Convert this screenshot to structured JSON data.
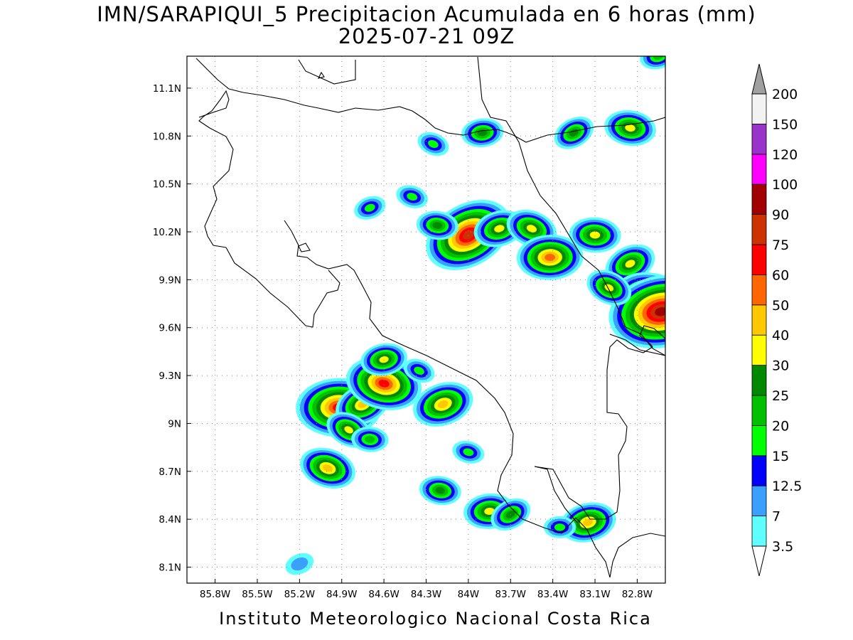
{
  "title_line1": "IMN/SARAPIQUI_5 Precipitacion Acumulada en 6 horas (mm)",
  "title_line2": "2025-07-21 09Z",
  "footer": "Instituto Meteorologico Nacional Costa Rica",
  "map": {
    "lon_range": [
      -86.0,
      -82.6
    ],
    "lat_range": [
      8.0,
      11.3
    ],
    "lon_ticks": [
      "85.8W",
      "85.5W",
      "85.2W",
      "84.9W",
      "84.6W",
      "84.3W",
      "84W",
      "83.7W",
      "83.4W",
      "83.1W",
      "82.8W"
    ],
    "lon_values": [
      -85.8,
      -85.5,
      -85.2,
      -84.9,
      -84.6,
      -84.3,
      -84.0,
      -83.7,
      -83.4,
      -83.1,
      -82.8
    ],
    "lat_ticks": [
      "11.1N",
      "10.8N",
      "10.5N",
      "10.2N",
      "9.9N",
      "9.6N",
      "9.3N",
      "9N",
      "8.7N",
      "8.4N",
      "8.1N"
    ],
    "lat_values": [
      11.1,
      10.8,
      10.5,
      10.2,
      9.9,
      9.6,
      9.3,
      9.0,
      8.7,
      8.4,
      8.1
    ],
    "grid": "dotted"
  },
  "colorbar": {
    "labels": [
      "3.5",
      "7",
      "12.5",
      "15",
      "20",
      "25",
      "30",
      "40",
      "50",
      "60",
      "75",
      "90",
      "100",
      "120",
      "150",
      "200"
    ],
    "colors": [
      "#ffffff",
      "#60ffff",
      "#3aa0ff",
      "#0000ff",
      "#00ff00",
      "#00c000",
      "#008800",
      "#ffff00",
      "#ffc800",
      "#ff6600",
      "#ff0000",
      "#cc3300",
      "#a00000",
      "#ff00ff",
      "#9933cc",
      "#f2f2f2",
      "#a0a0a0"
    ]
  },
  "precip_cells": [
    {
      "lon": -84.0,
      "lat": 10.18,
      "peak": 75
    },
    {
      "lon": -84.22,
      "lat": 10.24,
      "peak": 25
    },
    {
      "lon": -83.78,
      "lat": 10.22,
      "peak": 35
    },
    {
      "lon": -83.55,
      "lat": 10.22,
      "peak": 35
    },
    {
      "lon": -83.42,
      "lat": 10.04,
      "peak": 50
    },
    {
      "lon": -82.85,
      "lat": 10.0,
      "peak": 35
    },
    {
      "lon": -82.7,
      "lat": 9.78,
      "peak": 60
    },
    {
      "lon": -82.63,
      "lat": 9.7,
      "peak": 90
    },
    {
      "lon": -83.0,
      "lat": 9.85,
      "peak": 30
    },
    {
      "lon": -83.1,
      "lat": 10.18,
      "peak": 35
    },
    {
      "lon": -84.7,
      "lat": 10.35,
      "peak": 15
    },
    {
      "lon": -84.4,
      "lat": 10.42,
      "peak": 15
    },
    {
      "lon": -83.9,
      "lat": 10.82,
      "peak": 25
    },
    {
      "lon": -83.25,
      "lat": 10.82,
      "peak": 25
    },
    {
      "lon": -82.85,
      "lat": 10.85,
      "peak": 35
    },
    {
      "lon": -82.65,
      "lat": 11.3,
      "peak": 20
    },
    {
      "lon": -84.25,
      "lat": 10.75,
      "peak": 15
    },
    {
      "lon": -84.92,
      "lat": 9.1,
      "peak": 70
    },
    {
      "lon": -84.75,
      "lat": 9.12,
      "peak": 40
    },
    {
      "lon": -84.6,
      "lat": 9.25,
      "peak": 60
    },
    {
      "lon": -84.6,
      "lat": 9.4,
      "peak": 30
    },
    {
      "lon": -84.85,
      "lat": 8.96,
      "peak": 30
    },
    {
      "lon": -84.7,
      "lat": 8.9,
      "peak": 20
    },
    {
      "lon": -84.18,
      "lat": 9.12,
      "peak": 45
    },
    {
      "lon": -85.0,
      "lat": 8.72,
      "peak": 40
    },
    {
      "lon": -83.85,
      "lat": 8.45,
      "peak": 35
    },
    {
      "lon": -83.7,
      "lat": 8.43,
      "peak": 25
    },
    {
      "lon": -84.2,
      "lat": 8.58,
      "peak": 25
    },
    {
      "lon": -83.15,
      "lat": 8.38,
      "peak": 40
    },
    {
      "lon": -84.35,
      "lat": 9.33,
      "peak": 15
    },
    {
      "lon": -83.35,
      "lat": 8.35,
      "peak": 15
    },
    {
      "lon": -85.2,
      "lat": 8.12,
      "peak": 12
    },
    {
      "lon": -84.0,
      "lat": 8.82,
      "peak": 15
    }
  ]
}
